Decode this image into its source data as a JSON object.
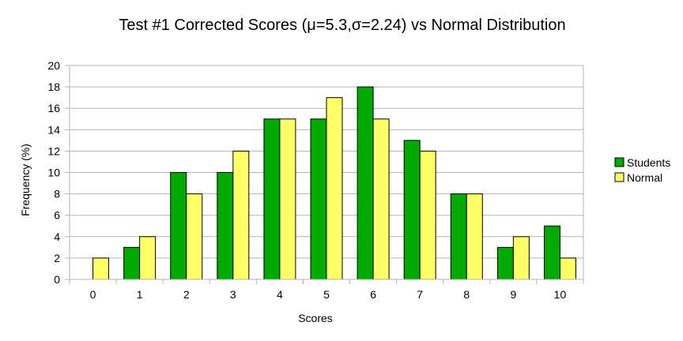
{
  "chart_data": {
    "type": "bar",
    "title": "Test #1 Corrected Scores (μ=5.3,σ=2.24) vs Normal Distribution",
    "xlabel": "Scores",
    "ylabel": "Frequency (%)",
    "categories": [
      "0",
      "1",
      "2",
      "3",
      "4",
      "5",
      "6",
      "7",
      "8",
      "9",
      "10"
    ],
    "series": [
      {
        "name": "Students",
        "color": "#00aa00",
        "values": [
          0,
          3,
          10,
          10,
          15,
          15,
          18,
          13,
          8,
          3,
          5
        ]
      },
      {
        "name": "Normal",
        "color": "#ffff66",
        "values": [
          2,
          4,
          8,
          12,
          15,
          17,
          15,
          12,
          8,
          4,
          2
        ]
      }
    ],
    "ylim": [
      0,
      20
    ],
    "yticks": [
      "0",
      "2",
      "4",
      "6",
      "8",
      "10",
      "12",
      "14",
      "16",
      "18",
      "20"
    ],
    "grid": true,
    "legend_position": "right"
  }
}
